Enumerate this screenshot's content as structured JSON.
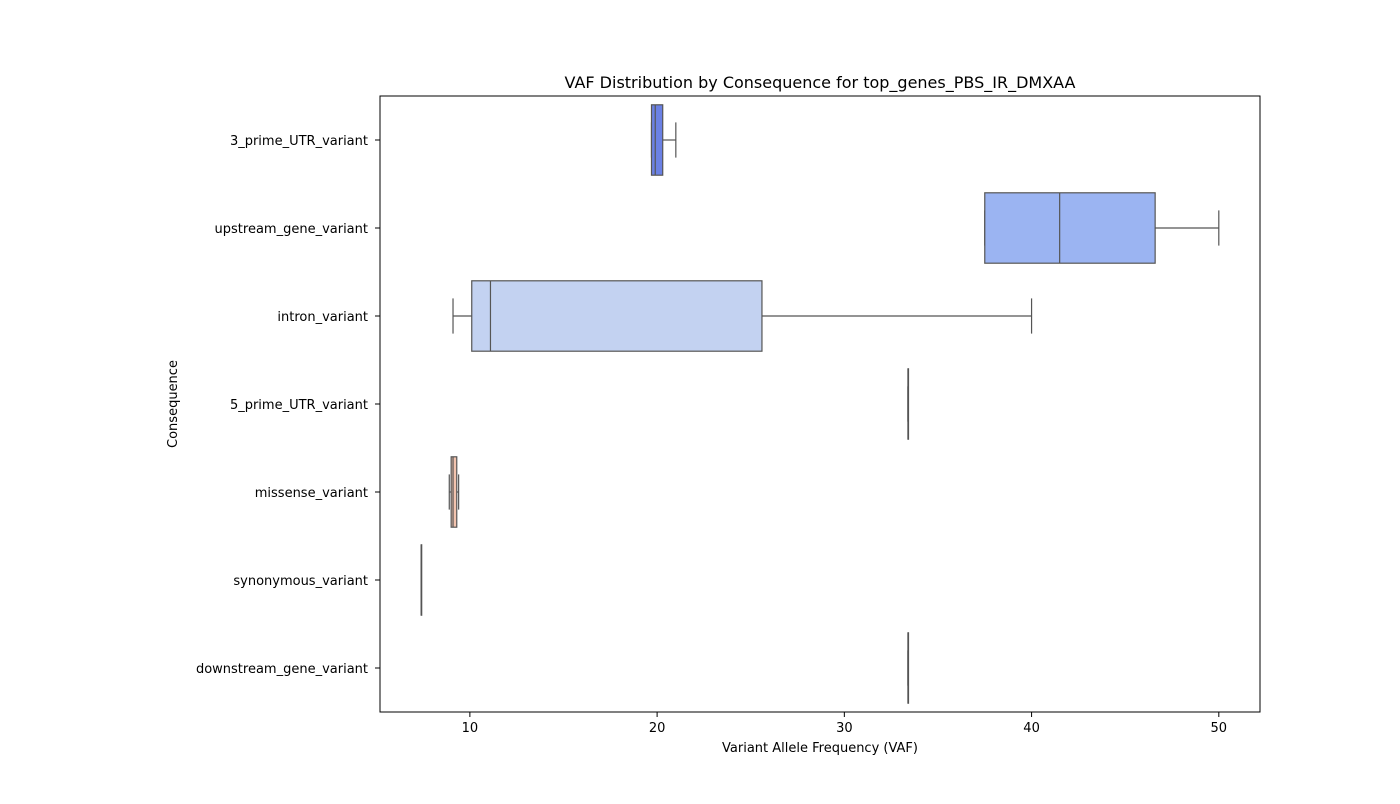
{
  "chart_data": {
    "type": "boxplot",
    "orientation": "horizontal",
    "title": "VAF Distribution by Consequence for top_genes_PBS_IR_DMXAA",
    "xlabel": "Variant Allele Frequency (VAF)",
    "ylabel": "Consequence",
    "xlim": [
      5.2,
      52.2
    ],
    "xticks": [
      10,
      20,
      30,
      40,
      50
    ],
    "grid": false,
    "categories": [
      "3_prime_UTR_variant",
      "upstream_gene_variant",
      "intron_variant",
      "5_prime_UTR_variant",
      "missense_variant",
      "synonymous_variant",
      "downstream_gene_variant"
    ],
    "boxes": [
      {
        "category": "3_prime_UTR_variant",
        "whisker_low": 19.7,
        "q1": 19.7,
        "median": 19.9,
        "q3": 20.3,
        "whisker_high": 21.0,
        "color": "#6b81e4"
      },
      {
        "category": "upstream_gene_variant",
        "whisker_low": 37.5,
        "q1": 37.5,
        "median": 41.5,
        "q3": 46.6,
        "whisker_high": 50.0,
        "color": "#9bb4f2"
      },
      {
        "category": "intron_variant",
        "whisker_low": 9.1,
        "q1": 10.1,
        "median": 11.1,
        "q3": 25.6,
        "whisker_high": 40.0,
        "color": "#c3d2f1"
      },
      {
        "category": "5_prime_UTR_variant",
        "whisker_low": 33.4,
        "q1": 33.4,
        "median": 33.4,
        "q3": 33.4,
        "whisker_high": 33.4,
        "color": "#e9d5cb"
      },
      {
        "category": "missense_variant",
        "whisker_low": 8.9,
        "q1": 9.0,
        "median": 9.1,
        "q3": 9.3,
        "whisker_high": 9.4,
        "color": "#f2c3ae"
      },
      {
        "category": "synonymous_variant",
        "whisker_low": 7.4,
        "q1": 7.4,
        "median": 7.4,
        "q3": 7.4,
        "whisker_high": 7.4,
        "color": "#f0a58c"
      },
      {
        "category": "downstream_gene_variant",
        "whisker_low": 33.4,
        "q1": 33.4,
        "median": 33.4,
        "q3": 33.4,
        "whisker_high": 33.4,
        "color": "#e2806a"
      }
    ]
  }
}
